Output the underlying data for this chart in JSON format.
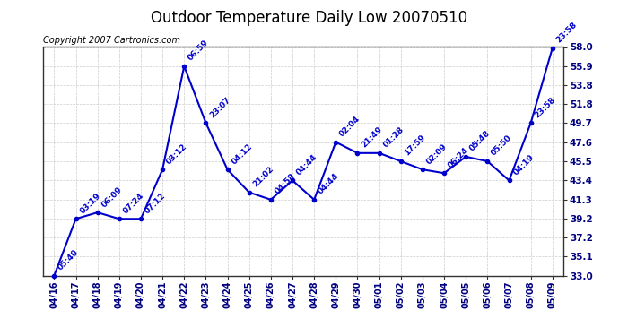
{
  "title": "Outdoor Temperature Daily Low 20070510",
  "copyright": "Copyright 2007 Cartronics.com",
  "x_labels": [
    "04/16",
    "04/17",
    "04/18",
    "04/19",
    "04/20",
    "04/21",
    "04/22",
    "04/23",
    "04/24",
    "04/25",
    "04/26",
    "04/27",
    "04/28",
    "04/29",
    "04/30",
    "05/01",
    "05/02",
    "05/03",
    "05/04",
    "05/05",
    "05/06",
    "05/07",
    "05/08",
    "05/09"
  ],
  "y_values": [
    33.0,
    39.2,
    39.9,
    39.2,
    39.2,
    44.6,
    55.9,
    49.7,
    44.6,
    42.1,
    41.3,
    43.4,
    41.3,
    47.6,
    46.4,
    46.4,
    45.5,
    44.6,
    44.2,
    46.0,
    45.5,
    43.4,
    49.7,
    57.9
  ],
  "point_labels": [
    "05:40",
    "03:19",
    "06:09",
    "07:24",
    "07:12",
    "03:12",
    "06:59",
    "23:07",
    "04:12",
    "21:02",
    "04:58",
    "04:44",
    "04:44",
    "02:04",
    "21:49",
    "01:28",
    "17:59",
    "02:09",
    "06:24",
    "05:48",
    "05:50",
    "04:19",
    "23:58",
    "23:58"
  ],
  "line_color": "#0000cc",
  "marker_color": "#0000cc",
  "bg_color": "#ffffff",
  "grid_color": "#cccccc",
  "title_fontsize": 12,
  "label_fontsize": 6.5,
  "copyright_fontsize": 7,
  "y_min": 33.0,
  "y_max": 58.0,
  "y_ticks": [
    33.0,
    35.1,
    37.2,
    39.2,
    41.3,
    43.4,
    45.5,
    47.6,
    49.7,
    51.8,
    53.8,
    55.9,
    58.0
  ]
}
